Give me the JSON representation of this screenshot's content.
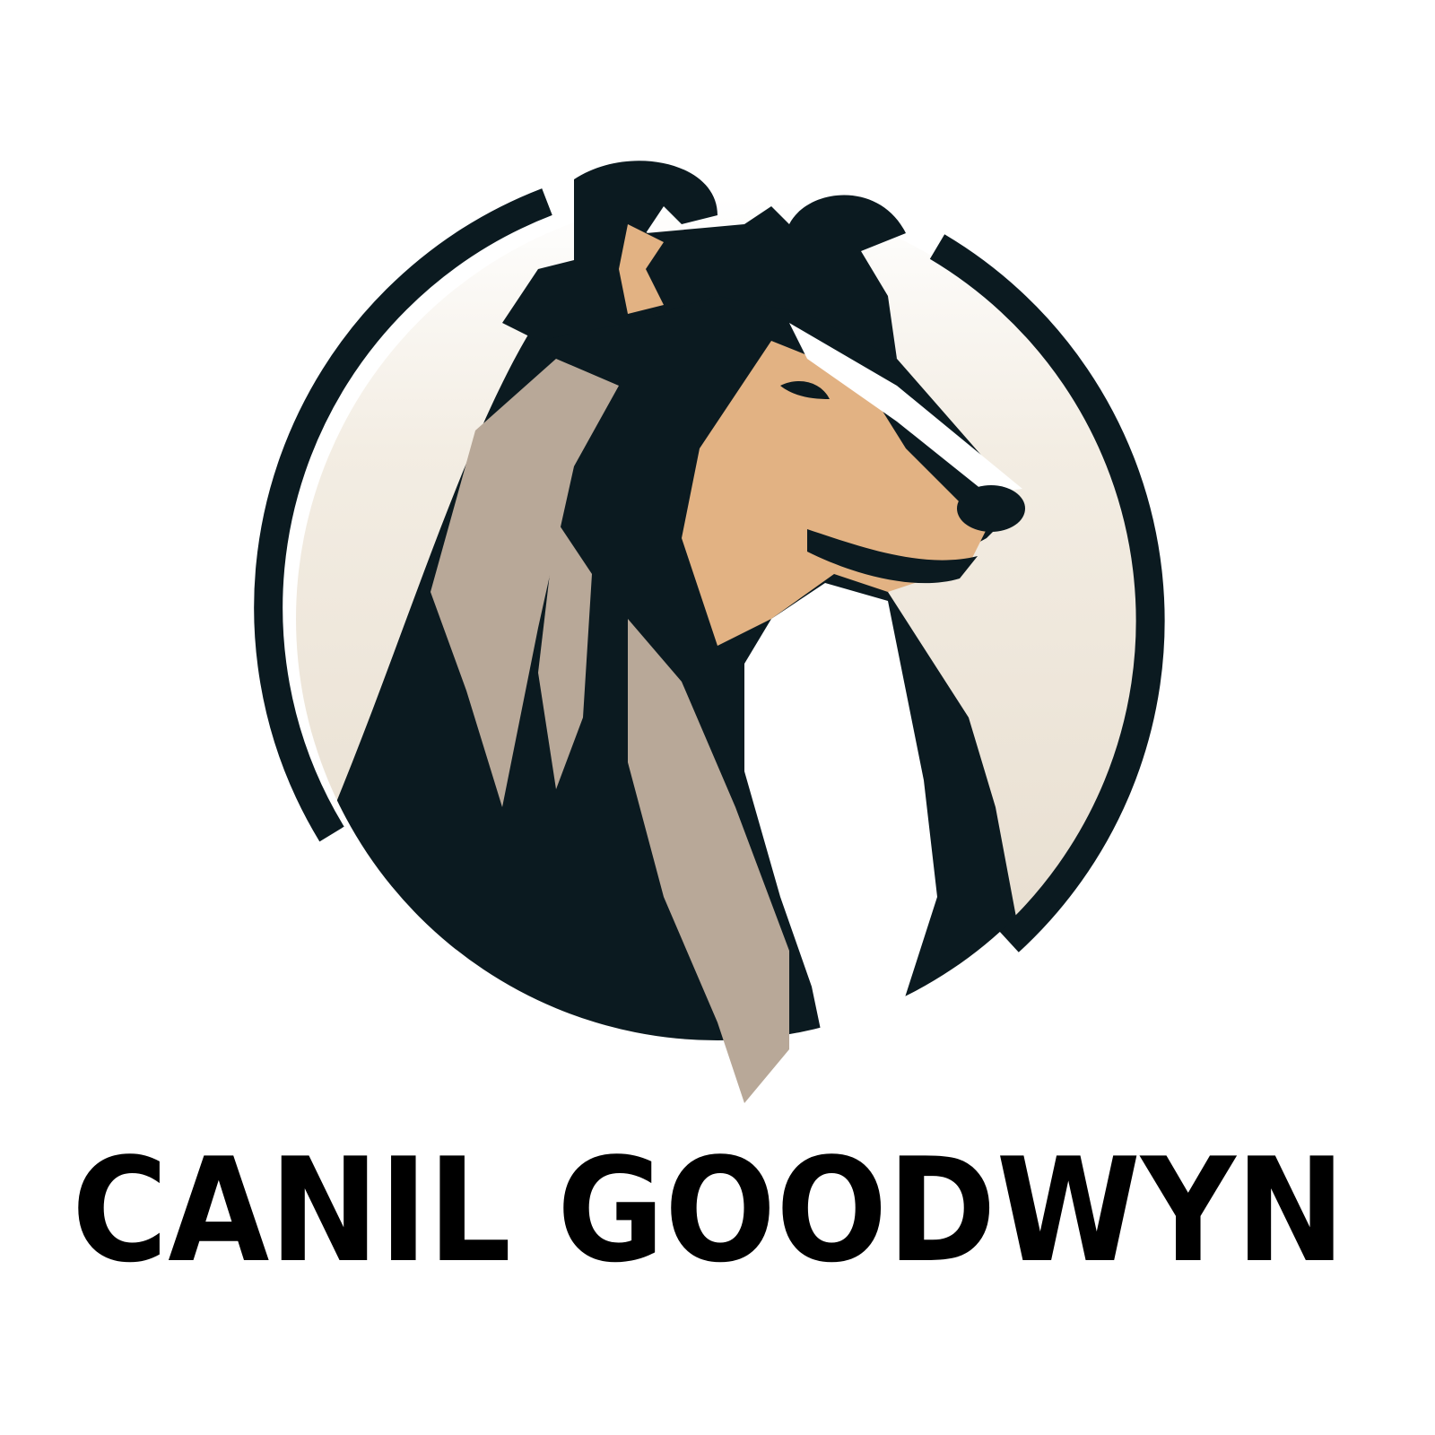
{
  "brand": {
    "name": "CANIL GOODWYN"
  }
}
